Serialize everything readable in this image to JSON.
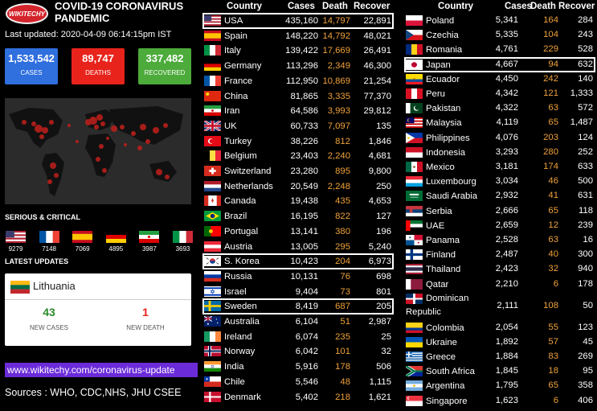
{
  "header": {
    "logo_text": "WIKITECHY",
    "title": "COVID-19 CORONAVIRUS PANDEMIC",
    "updated": "Last updated: 2020-04-09 06:14:15pm IST"
  },
  "stats": {
    "cases_value": "1,533,542",
    "cases_label": "CASES",
    "deaths_value": "89,747",
    "deaths_label": "DEATHS",
    "recovered_value": "337,482",
    "recovered_label": "RECOVERED"
  },
  "colors": {
    "cases": "#2f6fde",
    "deaths": "#e8231b",
    "recovered": "#4cab3a",
    "death_text": "#f0a23a",
    "url_bg": "#6b2bd9"
  },
  "serious": {
    "title": "SERIOUS & CRITICAL",
    "items": [
      {
        "flag": "us",
        "value": "9279"
      },
      {
        "flag": "fr",
        "value": "7148"
      },
      {
        "flag": "es",
        "value": "7069"
      },
      {
        "flag": "de",
        "value": "4895"
      },
      {
        "flag": "ir",
        "value": "3987"
      },
      {
        "flag": "it",
        "value": "3693"
      }
    ]
  },
  "latest": {
    "title": "LATEST UPDATES",
    "country": "Lithuania",
    "new_cases": "43",
    "new_cases_label": "NEW CASES",
    "new_death": "1",
    "new_death_label": "NEW DEATH"
  },
  "footer": {
    "url": "www.wikitechy.com/coronavirus-update",
    "sources": "Sources : WHO, CDC,NHS, JHU CSEE"
  },
  "table_headers": {
    "country": "Country",
    "cases": "Cases",
    "death": "Death",
    "recover": "Recover"
  },
  "table_left": [
    {
      "flag": "us",
      "country": "USA",
      "cases": "435,160",
      "death": "14,797",
      "recover": "22,891",
      "highlight": true
    },
    {
      "flag": "es",
      "country": "Spain",
      "cases": "148,220",
      "death": "14,792",
      "recover": "48,021"
    },
    {
      "flag": "it",
      "country": "Italy",
      "cases": "139,422",
      "death": "17,669",
      "recover": "26,491"
    },
    {
      "flag": "de",
      "country": "Germany",
      "cases": "113,296",
      "death": "2,349",
      "recover": "46,300"
    },
    {
      "flag": "fr",
      "country": "France",
      "cases": "112,950",
      "death": "10,869",
      "recover": "21,254"
    },
    {
      "flag": "cn",
      "country": "China",
      "cases": "81,865",
      "death": "3,335",
      "recover": "77,370"
    },
    {
      "flag": "ir",
      "country": "Iran",
      "cases": "64,586",
      "death": "3,993",
      "recover": "29,812"
    },
    {
      "flag": "uk",
      "country": "UK",
      "cases": "60,733",
      "death": "7,097",
      "recover": "135"
    },
    {
      "flag": "tr",
      "country": "Turkey",
      "cases": "38,226",
      "death": "812",
      "recover": "1,846"
    },
    {
      "flag": "be",
      "country": "Belgium",
      "cases": "23,403",
      "death": "2,240",
      "recover": "4,681"
    },
    {
      "flag": "ch",
      "country": "Switzerland",
      "cases": "23,280",
      "death": "895",
      "recover": "9,800"
    },
    {
      "flag": "nl",
      "country": "Netherlands",
      "cases": "20,549",
      "death": "2,248",
      "recover": "250"
    },
    {
      "flag": "ca",
      "country": "Canada",
      "cases": "19,438",
      "death": "435",
      "recover": "4,653"
    },
    {
      "flag": "br",
      "country": "Brazil",
      "cases": "16,195",
      "death": "822",
      "recover": "127"
    },
    {
      "flag": "pt",
      "country": "Portugal",
      "cases": "13,141",
      "death": "380",
      "recover": "196"
    },
    {
      "flag": "at",
      "country": "Austria",
      "cases": "13,005",
      "death": "295",
      "recover": "5,240"
    },
    {
      "flag": "kr",
      "country": "S. Korea",
      "cases": "10,423",
      "death": "204",
      "recover": "6,973",
      "highlight": true
    },
    {
      "flag": "ru",
      "country": "Russia",
      "cases": "10,131",
      "death": "76",
      "recover": "698"
    },
    {
      "flag": "il",
      "country": "Israel",
      "cases": "9,404",
      "death": "73",
      "recover": "801"
    },
    {
      "flag": "se",
      "country": "Sweden",
      "cases": "8,419",
      "death": "687",
      "recover": "205",
      "highlight": true
    },
    {
      "flag": "au",
      "country": "Australia",
      "cases": "6,104",
      "death": "51",
      "recover": "2,987"
    },
    {
      "flag": "ie",
      "country": "Ireland",
      "cases": "6,074",
      "death": "235",
      "recover": "25"
    },
    {
      "flag": "no",
      "country": "Norway",
      "cases": "6,042",
      "death": "101",
      "recover": "32"
    },
    {
      "flag": "in",
      "country": "India",
      "cases": "5,916",
      "death": "178",
      "recover": "506"
    },
    {
      "flag": "cl",
      "country": "Chile",
      "cases": "5,546",
      "death": "48",
      "recover": "1,115"
    },
    {
      "flag": "dk",
      "country": "Denmark",
      "cases": "5,402",
      "death": "218",
      "recover": "1,621"
    }
  ],
  "table_right": [
    {
      "flag": "pl",
      "country": "Poland",
      "cases": "5,341",
      "death": "164",
      "recover": "284"
    },
    {
      "flag": "cz",
      "country": "Czechia",
      "cases": "5,335",
      "death": "104",
      "recover": "243"
    },
    {
      "flag": "ro",
      "country": "Romania",
      "cases": "4,761",
      "death": "229",
      "recover": "528"
    },
    {
      "flag": "jp",
      "country": "Japan",
      "cases": "4,667",
      "death": "94",
      "recover": "632",
      "highlight": true
    },
    {
      "flag": "ec",
      "country": "Ecuador",
      "cases": "4,450",
      "death": "242",
      "recover": "140"
    },
    {
      "flag": "pe",
      "country": "Peru",
      "cases": "4,342",
      "death": "121",
      "recover": "1,333"
    },
    {
      "flag": "pk",
      "country": "Pakistan",
      "cases": "4,322",
      "death": "63",
      "recover": "572"
    },
    {
      "flag": "my",
      "country": "Malaysia",
      "cases": "4,119",
      "death": "65",
      "recover": "1,487"
    },
    {
      "flag": "ph",
      "country": "Philippines",
      "cases": "4,076",
      "death": "203",
      "recover": "124"
    },
    {
      "flag": "id",
      "country": "Indonesia",
      "cases": "3,293",
      "death": "280",
      "recover": "252"
    },
    {
      "flag": "mx",
      "country": "Mexico",
      "cases": "3,181",
      "death": "174",
      "recover": "633"
    },
    {
      "flag": "lu",
      "country": "Luxembourg",
      "cases": "3,034",
      "death": "46",
      "recover": "500"
    },
    {
      "flag": "sa",
      "country": "Saudi Arabia",
      "cases": "2,932",
      "death": "41",
      "recover": "631"
    },
    {
      "flag": "rs",
      "country": "Serbia",
      "cases": "2,666",
      "death": "65",
      "recover": "118"
    },
    {
      "flag": "ae",
      "country": "UAE",
      "cases": "2,659",
      "death": "12",
      "recover": "239"
    },
    {
      "flag": "pa",
      "country": "Panama",
      "cases": "2,528",
      "death": "63",
      "recover": "16"
    },
    {
      "flag": "fi",
      "country": "Finland",
      "cases": "2,487",
      "death": "40",
      "recover": "300"
    },
    {
      "flag": "th",
      "country": "Thailand",
      "cases": "2,423",
      "death": "32",
      "recover": "940"
    },
    {
      "flag": "qa",
      "country": "Qatar",
      "cases": "2,210",
      "death": "6",
      "recover": "178"
    },
    {
      "flag": "do",
      "country": "Dominican Republic",
      "cases": "2,111",
      "death": "108",
      "recover": "50",
      "double": true
    },
    {
      "flag": "co",
      "country": "Colombia",
      "cases": "2,054",
      "death": "55",
      "recover": "123"
    },
    {
      "flag": "ua",
      "country": "Ukraine",
      "cases": "1,892",
      "death": "57",
      "recover": "45"
    },
    {
      "flag": "gr",
      "country": "Greece",
      "cases": "1,884",
      "death": "83",
      "recover": "269"
    },
    {
      "flag": "za",
      "country": "South Africa",
      "cases": "1,845",
      "death": "18",
      "recover": "95"
    },
    {
      "flag": "ar",
      "country": "Argentina",
      "cases": "1,795",
      "death": "65",
      "recover": "358"
    },
    {
      "flag": "sg",
      "country": "Singapore",
      "cases": "1,623",
      "death": "6",
      "recover": "406"
    }
  ]
}
